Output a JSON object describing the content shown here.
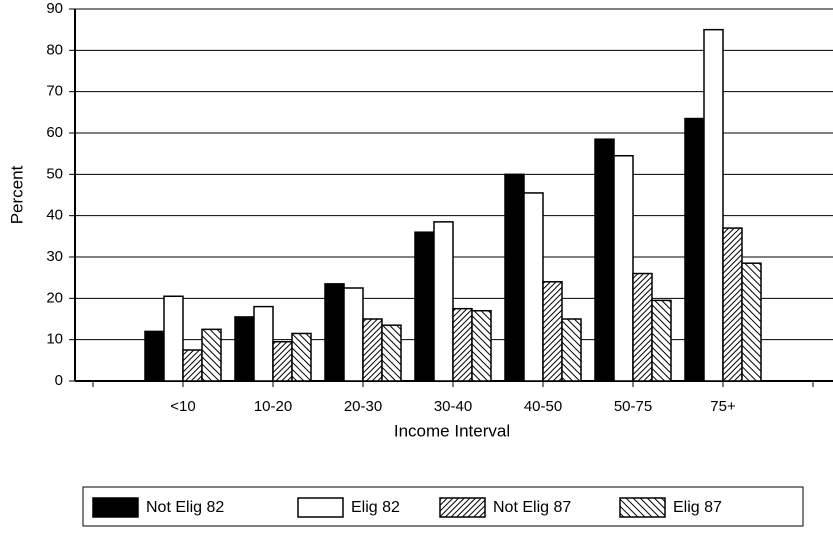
{
  "chart_data": {
    "type": "bar",
    "xlabel": "Income Interval",
    "ylabel": "Percent",
    "categories": [
      "<10",
      "10-20",
      "20-30",
      "30-40",
      "40-50",
      "50-75",
      "75+"
    ],
    "series": [
      {
        "name": "Not Elig 82",
        "color": "#000000",
        "values": [
          12,
          15.5,
          23.5,
          36,
          50,
          58.5,
          63.5
        ]
      },
      {
        "name": "Elig 82",
        "color": "#ffffff",
        "values": [
          20.5,
          18,
          22.5,
          38.5,
          45.5,
          54.5,
          85
        ]
      },
      {
        "name": "Not Elig 87",
        "color": "#000000",
        "pattern": "dense-hatch",
        "values": [
          7.5,
          9.5,
          15,
          17.5,
          24,
          26,
          37
        ]
      },
      {
        "name": "Elig 87",
        "color": "#000000",
        "pattern": "wide-hatch",
        "values": [
          12.5,
          11.5,
          13.5,
          17,
          15,
          19.5,
          28.5
        ]
      }
    ],
    "ylim": [
      0,
      90
    ],
    "yticks": [
      0,
      10,
      20,
      30,
      40,
      50,
      60,
      70,
      80,
      90
    ],
    "grid": true,
    "legend": "bottom"
  }
}
